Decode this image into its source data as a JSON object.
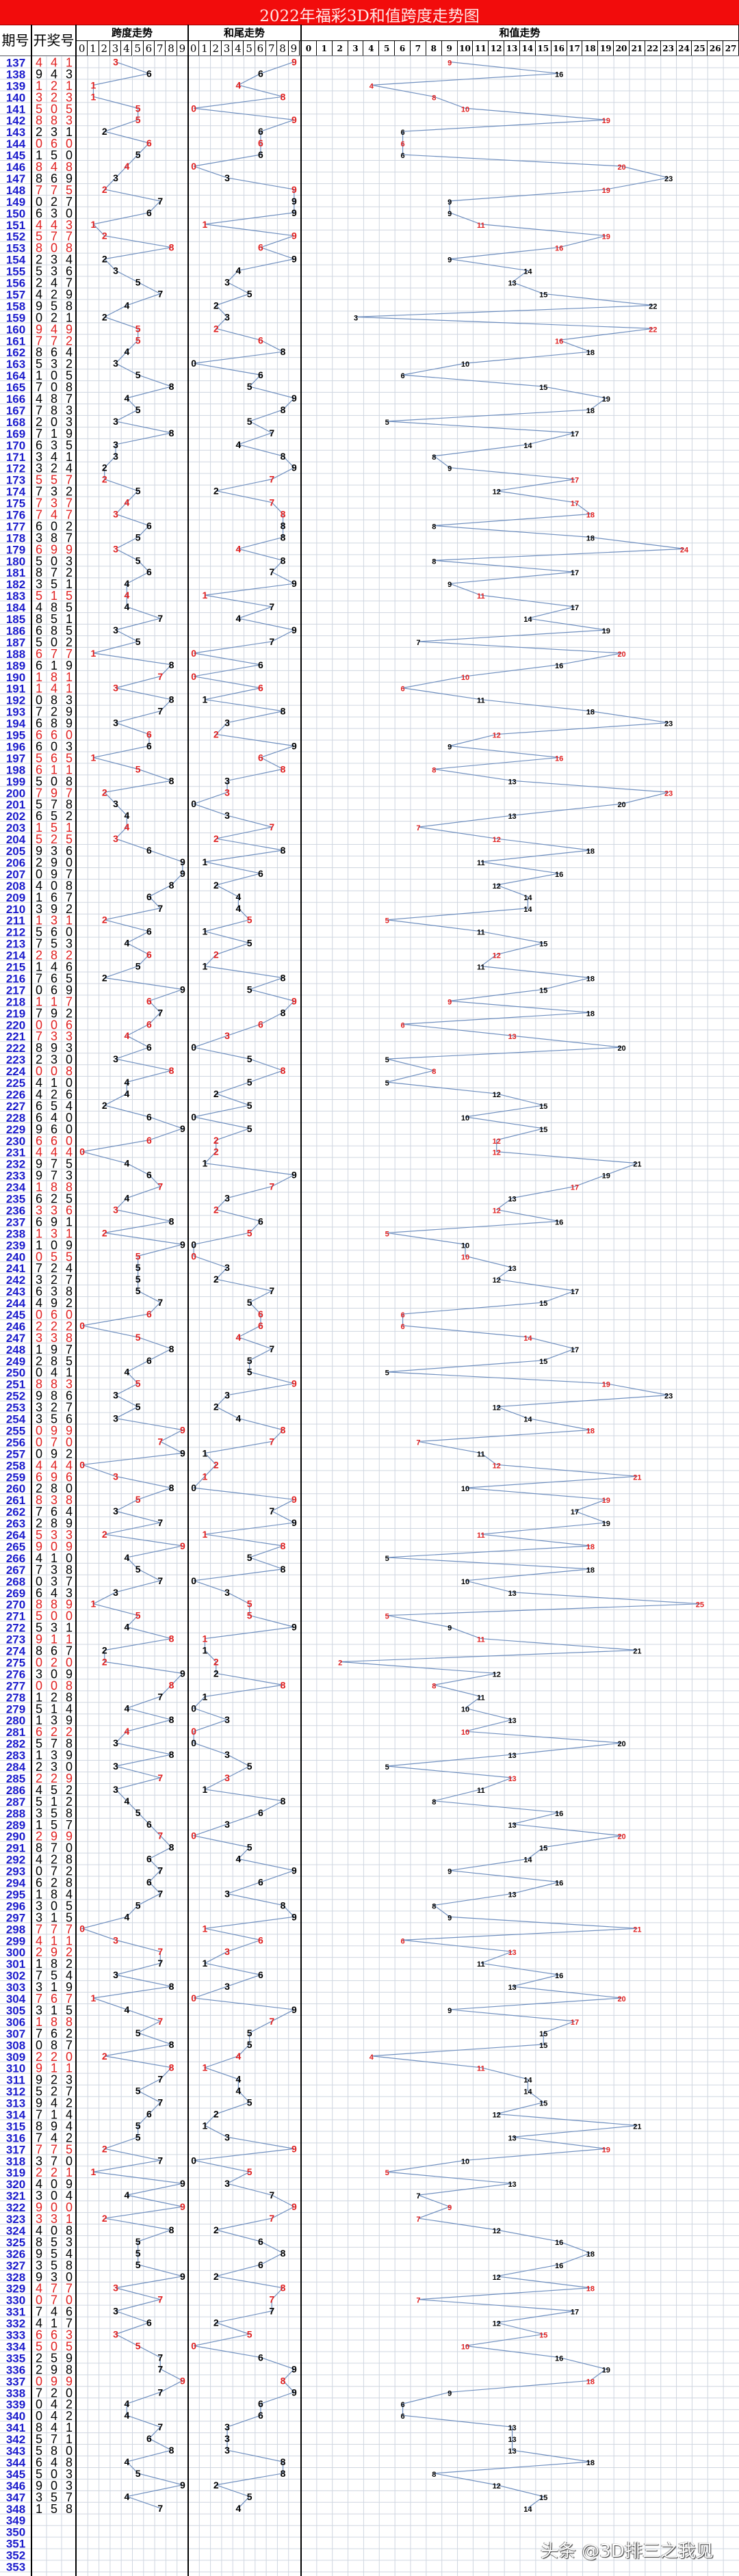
{
  "title": "2022年福彩3D和值跨度走势图",
  "headers": {
    "period": "期号",
    "draw": "开奖号",
    "span_section": "跨度走势",
    "tail_section": "和尾走势",
    "sum_section": "和值走势",
    "span_columns": [
      "0",
      "1",
      "2",
      "3",
      "4",
      "5",
      "6",
      "7",
      "8",
      "9"
    ],
    "tail_columns": [
      "0",
      "1",
      "2",
      "3",
      "4",
      "5",
      "6",
      "7",
      "8",
      "9"
    ],
    "sum_columns": [
      "0",
      "1",
      "2",
      "3",
      "4",
      "5",
      "6",
      "7",
      "8",
      "9",
      "10",
      "11",
      "12",
      "13",
      "14",
      "15",
      "16",
      "17",
      "18",
      "19",
      "20",
      "21",
      "22",
      "23",
      "24",
      "25",
      "26",
      "27"
    ]
  },
  "watermark": "头条 @3D排三之我见",
  "colors": {
    "title_bg": "#f20c0c",
    "period": "#1a1acc",
    "pair_highlight": "#e02020",
    "normal": "#000000",
    "trend_line": "#6f8fbf"
  },
  "chart_data": {
    "type": "line",
    "title": "2022年福彩3D和值跨度走势图",
    "grid": true,
    "periods_first": 137,
    "periods_last": 353,
    "empty_periods": [
      349,
      350,
      351,
      352,
      353
    ],
    "draws": [
      "441",
      "943",
      "121",
      "323",
      "505",
      "883",
      "231",
      "060",
      "150",
      "848",
      "869",
      "775",
      "027",
      "630",
      "443",
      "577",
      "808",
      "234",
      "536",
      "247",
      "429",
      "958",
      "021",
      "949",
      "772",
      "864",
      "532",
      "105",
      "708",
      "487",
      "783",
      "203",
      "719",
      "635",
      "341",
      "324",
      "557",
      "732",
      "737",
      "747",
      "602",
      "387",
      "699",
      "503",
      "872",
      "351",
      "515",
      "485",
      "851",
      "685",
      "502",
      "677",
      "619",
      "181",
      "141",
      "083",
      "729",
      "689",
      "660",
      "603",
      "565",
      "611",
      "508",
      "797",
      "578",
      "652",
      "151",
      "525",
      "936",
      "290",
      "097",
      "408",
      "167",
      "392",
      "131",
      "560",
      "753",
      "282",
      "146",
      "765",
      "069",
      "117",
      "792",
      "006",
      "733",
      "893",
      "230",
      "008",
      "410",
      "426",
      "654",
      "640",
      "960",
      "660",
      "444",
      "975",
      "973",
      "188",
      "625",
      "336",
      "691",
      "131",
      "109",
      "055",
      "724",
      "327",
      "638",
      "492",
      "060",
      "222",
      "338",
      "197",
      "285",
      "041",
      "883",
      "986",
      "327",
      "356",
      "099",
      "070",
      "092",
      "444",
      "696",
      "280",
      "838",
      "764",
      "289",
      "533",
      "909",
      "410",
      "738",
      "037",
      "643",
      "889",
      "500",
      "531",
      "911",
      "867",
      "020",
      "309",
      "008",
      "128",
      "514",
      "139",
      "622",
      "578",
      "139",
      "230",
      "229",
      "452",
      "512",
      "358",
      "157",
      "299",
      "870",
      "428",
      "072",
      "628",
      "184",
      "305",
      "315",
      "777",
      "411",
      "292",
      "182",
      "754",
      "319",
      "767",
      "315",
      "188",
      "762",
      "087",
      "220",
      "911",
      "923",
      "527",
      "942",
      "714",
      "894",
      "742",
      "775",
      "370",
      "221",
      "409",
      "304",
      "900",
      "331",
      "408",
      "853",
      "954",
      "358",
      "930",
      "477",
      "070",
      "746",
      "417",
      "663",
      "505",
      "259",
      "298",
      "099",
      "720",
      "042",
      "042",
      "841",
      "571",
      "580",
      "648",
      "503",
      "903",
      "357",
      "158"
    ],
    "series": [
      {
        "name": "跨度走势",
        "ylim": [
          0,
          9
        ],
        "values": [
          3,
          6,
          1,
          1,
          5,
          5,
          2,
          6,
          5,
          4,
          3,
          2,
          7,
          6,
          1,
          2,
          8,
          2,
          3,
          5,
          7,
          4,
          2,
          5,
          5,
          4,
          3,
          5,
          8,
          4,
          5,
          3,
          8,
          3,
          3,
          2,
          2,
          5,
          4,
          3,
          6,
          5,
          3,
          5,
          6,
          4,
          4,
          4,
          7,
          3,
          5,
          1,
          8,
          7,
          3,
          8,
          7,
          3,
          6,
          6,
          1,
          5,
          8,
          2,
          3,
          4,
          4,
          3,
          6,
          9,
          9,
          8,
          6,
          7,
          2,
          6,
          4,
          6,
          5,
          2,
          9,
          6,
          7,
          6,
          4,
          6,
          3,
          8,
          4,
          4,
          2,
          6,
          9,
          6,
          0,
          4,
          6,
          7,
          4,
          3,
          8,
          2,
          9,
          5,
          5,
          5,
          5,
          7,
          6,
          0,
          5,
          8,
          6,
          4,
          5,
          3,
          5,
          3,
          9,
          7,
          9,
          0,
          3,
          8,
          5,
          3,
          7,
          2,
          9,
          4,
          5,
          7,
          3,
          1,
          5,
          4,
          8,
          2,
          2,
          9,
          8,
          7,
          4,
          8,
          4,
          3,
          8,
          3,
          7,
          3,
          4,
          5,
          6,
          7,
          8,
          6,
          7,
          6,
          7,
          5,
          4,
          0,
          3,
          7,
          7,
          3,
          8,
          1,
          4,
          7,
          5,
          8,
          2,
          8,
          7,
          5,
          7,
          6,
          5,
          5,
          2,
          7,
          1,
          9,
          4,
          9,
          2,
          8,
          5,
          5,
          5,
          9,
          3,
          7,
          3,
          6,
          3,
          5,
          7,
          7,
          9,
          7,
          4,
          4,
          7,
          6,
          8,
          4,
          5,
          9,
          4,
          7
        ]
      },
      {
        "name": "和尾走势",
        "ylim": [
          0,
          9
        ],
        "values": [
          9,
          6,
          4,
          8,
          0,
          9,
          6,
          6,
          6,
          0,
          3,
          9,
          9,
          9,
          1,
          9,
          6,
          9,
          4,
          3,
          5,
          2,
          3,
          2,
          6,
          8,
          0,
          6,
          5,
          9,
          8,
          5,
          7,
          4,
          8,
          9,
          7,
          2,
          7,
          8,
          8,
          8,
          4,
          8,
          7,
          9,
          1,
          7,
          4,
          9,
          7,
          0,
          6,
          0,
          6,
          1,
          8,
          3,
          2,
          9,
          6,
          8,
          3,
          3,
          0,
          3,
          7,
          2,
          8,
          1,
          6,
          2,
          4,
          4,
          5,
          1,
          5,
          2,
          1,
          8,
          5,
          9,
          8,
          6,
          3,
          0,
          5,
          8,
          5,
          2,
          5,
          0,
          5,
          2,
          2,
          1,
          9,
          7,
          3,
          2,
          6,
          5,
          0,
          0,
          3,
          2,
          7,
          5,
          6,
          6,
          4,
          7,
          5,
          5,
          9,
          3,
          2,
          4,
          8,
          7,
          1,
          2,
          1,
          0,
          9,
          7,
          9,
          1,
          8,
          5,
          8,
          0,
          3,
          5,
          5,
          9,
          1,
          1,
          2,
          2,
          8,
          1,
          0,
          3,
          0,
          0,
          3,
          5,
          3,
          1,
          8,
          6,
          3,
          0,
          5,
          4,
          9,
          6,
          3,
          8,
          9,
          1,
          6,
          3,
          1,
          6,
          3,
          0,
          9,
          7,
          5,
          5,
          4,
          1,
          4,
          4,
          5,
          2,
          1,
          3,
          9,
          0,
          5,
          3,
          7,
          9,
          7,
          2,
          6,
          8,
          6,
          2,
          8,
          7,
          7,
          2,
          5,
          0,
          6,
          9,
          8,
          9,
          6,
          6,
          3,
          3,
          3,
          8,
          8,
          2,
          5,
          4
        ]
      },
      {
        "name": "和值走势",
        "ylim": [
          0,
          27
        ],
        "values": [
          9,
          16,
          4,
          8,
          10,
          19,
          6,
          6,
          6,
          20,
          23,
          19,
          9,
          9,
          11,
          19,
          16,
          9,
          14,
          13,
          15,
          22,
          3,
          22,
          16,
          18,
          10,
          6,
          15,
          19,
          18,
          5,
          17,
          14,
          8,
          9,
          17,
          12,
          17,
          18,
          8,
          18,
          24,
          8,
          17,
          9,
          11,
          17,
          14,
          19,
          7,
          20,
          16,
          10,
          6,
          11,
          18,
          23,
          12,
          9,
          16,
          8,
          13,
          23,
          20,
          13,
          7,
          12,
          18,
          11,
          16,
          12,
          14,
          14,
          5,
          11,
          15,
          12,
          11,
          18,
          15,
          9,
          18,
          6,
          13,
          20,
          5,
          8,
          5,
          12,
          15,
          10,
          15,
          12,
          12,
          21,
          19,
          17,
          13,
          12,
          16,
          5,
          10,
          10,
          13,
          12,
          17,
          15,
          6,
          6,
          14,
          17,
          15,
          5,
          19,
          23,
          12,
          14,
          18,
          7,
          11,
          12,
          21,
          10,
          19,
          17,
          19,
          11,
          18,
          5,
          18,
          10,
          13,
          25,
          5,
          9,
          11,
          21,
          2,
          12,
          8,
          11,
          10,
          13,
          10,
          20,
          13,
          5,
          13,
          11,
          8,
          16,
          13,
          20,
          15,
          14,
          9,
          16,
          13,
          8,
          9,
          21,
          6,
          13,
          11,
          16,
          13,
          20,
          9,
          17,
          15,
          15,
          4,
          11,
          14,
          14,
          15,
          12,
          21,
          13,
          19,
          10,
          5,
          13,
          7,
          9,
          7,
          12,
          16,
          18,
          16,
          12,
          18,
          7,
          17,
          12,
          15,
          10,
          16,
          19,
          18,
          9,
          6,
          6,
          13,
          13,
          13,
          18,
          8,
          12,
          15,
          14
        ]
      }
    ]
  }
}
